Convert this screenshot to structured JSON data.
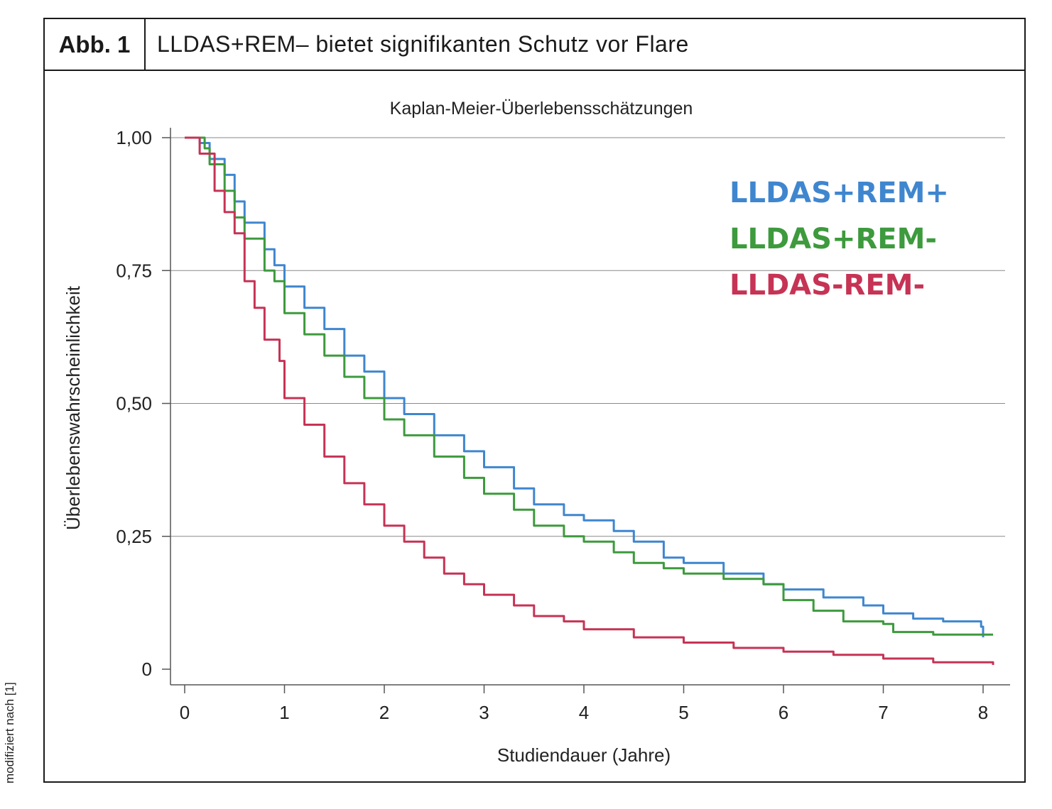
{
  "figure": {
    "label": "Abb. 1",
    "title": "LLDAS+REM– bietet signifikanten Schutz vor Flare",
    "source_note": "modifiziert nach [1]"
  },
  "chart_data": {
    "type": "line",
    "title": "Kaplan-Meier-Überlebensschätzungen",
    "xlabel": "Studiendauer (Jahre)",
    "ylabel": "Überlebenswahrscheinlichkeit",
    "xlim": [
      0,
      8
    ],
    "ylim": [
      0,
      1
    ],
    "x_ticks": [
      0,
      1,
      2,
      3,
      4,
      5,
      6,
      7,
      8
    ],
    "x_tick_labels": [
      "0",
      "1",
      "2",
      "3",
      "4",
      "5",
      "6",
      "7",
      "8"
    ],
    "y_ticks": [
      0,
      0.25,
      0.5,
      0.75,
      1.0
    ],
    "y_tick_labels": [
      "0",
      "0,25",
      "0,50",
      "0,75",
      "1,00"
    ],
    "grid": "horizontal",
    "legend_placement": "top-right",
    "series": [
      {
        "name": "LLDAS+REM+",
        "color": "#3f86cf",
        "points": [
          [
            0,
            1.0
          ],
          [
            0.15,
            0.99
          ],
          [
            0.25,
            0.96
          ],
          [
            0.4,
            0.93
          ],
          [
            0.5,
            0.88
          ],
          [
            0.6,
            0.84
          ],
          [
            0.8,
            0.79
          ],
          [
            0.9,
            0.76
          ],
          [
            1.0,
            0.72
          ],
          [
            1.2,
            0.68
          ],
          [
            1.4,
            0.64
          ],
          [
            1.6,
            0.59
          ],
          [
            1.8,
            0.56
          ],
          [
            2.0,
            0.51
          ],
          [
            2.2,
            0.48
          ],
          [
            2.5,
            0.44
          ],
          [
            2.8,
            0.41
          ],
          [
            3.0,
            0.38
          ],
          [
            3.3,
            0.34
          ],
          [
            3.5,
            0.31
          ],
          [
            3.8,
            0.29
          ],
          [
            4.0,
            0.28
          ],
          [
            4.3,
            0.26
          ],
          [
            4.5,
            0.24
          ],
          [
            4.8,
            0.21
          ],
          [
            5.0,
            0.2
          ],
          [
            5.4,
            0.18
          ],
          [
            5.8,
            0.16
          ],
          [
            6.0,
            0.15
          ],
          [
            6.4,
            0.135
          ],
          [
            6.8,
            0.12
          ],
          [
            7.0,
            0.105
          ],
          [
            7.3,
            0.095
          ],
          [
            7.6,
            0.09
          ],
          [
            7.98,
            0.08
          ],
          [
            8.0,
            0.06
          ]
        ]
      },
      {
        "name": "LLDAS+REM-",
        "color": "#3d9a3d",
        "points": [
          [
            0,
            1.0
          ],
          [
            0.2,
            0.98
          ],
          [
            0.25,
            0.95
          ],
          [
            0.4,
            0.9
          ],
          [
            0.5,
            0.85
          ],
          [
            0.6,
            0.81
          ],
          [
            0.8,
            0.75
          ],
          [
            0.9,
            0.73
          ],
          [
            1.0,
            0.67
          ],
          [
            1.2,
            0.63
          ],
          [
            1.4,
            0.59
          ],
          [
            1.6,
            0.55
          ],
          [
            1.8,
            0.51
          ],
          [
            2.0,
            0.47
          ],
          [
            2.2,
            0.44
          ],
          [
            2.5,
            0.4
          ],
          [
            2.8,
            0.36
          ],
          [
            3.0,
            0.33
          ],
          [
            3.3,
            0.3
          ],
          [
            3.5,
            0.27
          ],
          [
            3.8,
            0.25
          ],
          [
            4.0,
            0.24
          ],
          [
            4.3,
            0.22
          ],
          [
            4.5,
            0.2
          ],
          [
            4.8,
            0.19
          ],
          [
            5.0,
            0.18
          ],
          [
            5.4,
            0.17
          ],
          [
            5.8,
            0.16
          ],
          [
            6.0,
            0.13
          ],
          [
            6.3,
            0.11
          ],
          [
            6.6,
            0.09
          ],
          [
            7.0,
            0.085
          ],
          [
            7.1,
            0.07
          ],
          [
            7.5,
            0.065
          ],
          [
            8.1,
            0.065
          ]
        ]
      },
      {
        "name": "LLDAS-REM-",
        "color": "#c63355",
        "points": [
          [
            0,
            1.0
          ],
          [
            0.15,
            0.97
          ],
          [
            0.3,
            0.9
          ],
          [
            0.4,
            0.86
          ],
          [
            0.5,
            0.82
          ],
          [
            0.6,
            0.73
          ],
          [
            0.7,
            0.68
          ],
          [
            0.8,
            0.62
          ],
          [
            0.95,
            0.58
          ],
          [
            1.0,
            0.51
          ],
          [
            1.2,
            0.46
          ],
          [
            1.4,
            0.4
          ],
          [
            1.6,
            0.35
          ],
          [
            1.8,
            0.31
          ],
          [
            2.0,
            0.27
          ],
          [
            2.2,
            0.24
          ],
          [
            2.4,
            0.21
          ],
          [
            2.6,
            0.18
          ],
          [
            2.8,
            0.16
          ],
          [
            3.0,
            0.14
          ],
          [
            3.3,
            0.12
          ],
          [
            3.5,
            0.1
          ],
          [
            3.8,
            0.09
          ],
          [
            4.0,
            0.075
          ],
          [
            4.5,
            0.06
          ],
          [
            5.0,
            0.05
          ],
          [
            5.5,
            0.04
          ],
          [
            6.0,
            0.033
          ],
          [
            6.5,
            0.027
          ],
          [
            7.0,
            0.02
          ],
          [
            7.5,
            0.013
          ],
          [
            8.1,
            0.008
          ]
        ]
      }
    ]
  }
}
